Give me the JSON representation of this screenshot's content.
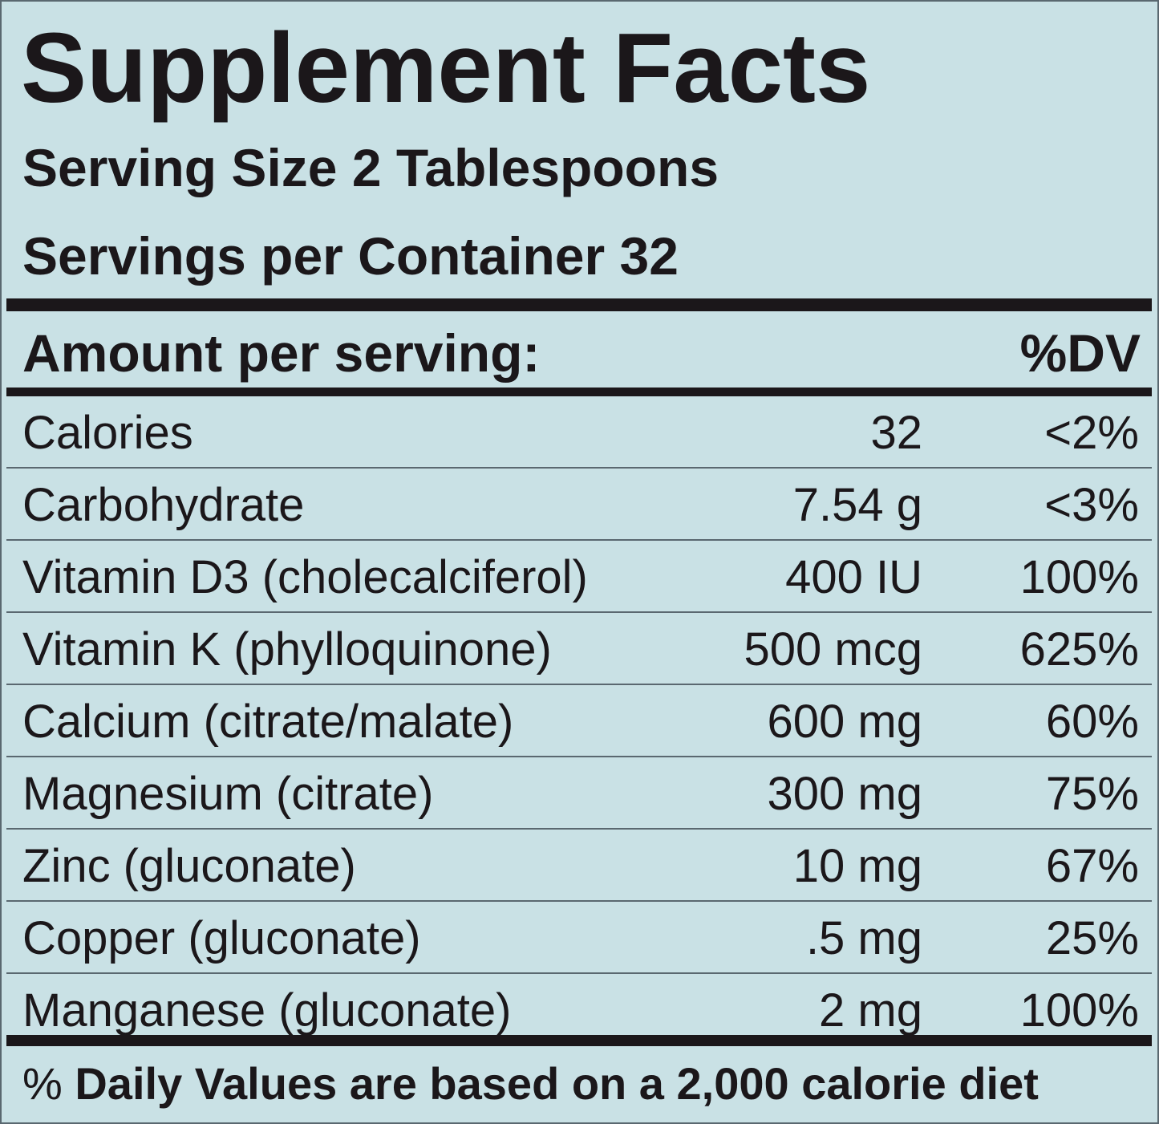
{
  "label": {
    "title": "Supplement Facts",
    "serving_size": "Serving Size 2 Tablespoons",
    "servings_per_container": "Servings per Container 32",
    "amount_header": "Amount per serving:",
    "dv_header": "%DV",
    "rows": [
      {
        "name": "Calories",
        "amount": "32",
        "dv": "<2%"
      },
      {
        "name": "Carbohydrate",
        "amount": "7.54 g",
        "dv": "<3%"
      },
      {
        "name": "Vitamin D3 (cholecalciferol)",
        "amount": "400 IU",
        "dv": "100%"
      },
      {
        "name": "Vitamin K (phylloquinone)",
        "amount": "500 mcg",
        "dv": "625%"
      },
      {
        "name": "Calcium (citrate/malate)",
        "amount": "600 mg",
        "dv": "60%"
      },
      {
        "name": "Magnesium (citrate)",
        "amount": "300 mg",
        "dv": "75%"
      },
      {
        "name": "Zinc (gluconate)",
        "amount": "10 mg",
        "dv": "67%"
      },
      {
        "name": "Copper (gluconate)",
        "amount": ".5 mg",
        "dv": "25%"
      },
      {
        "name": "Manganese (gluconate)",
        "amount": "2 mg",
        "dv": "100%"
      }
    ],
    "footer_symbol": "%",
    "footer_text": "Daily Values are based on a 2,000 calorie diet"
  },
  "colors": {
    "background": "#c9e1e5",
    "text": "#1b171a",
    "row_divider": "#5a6870"
  }
}
